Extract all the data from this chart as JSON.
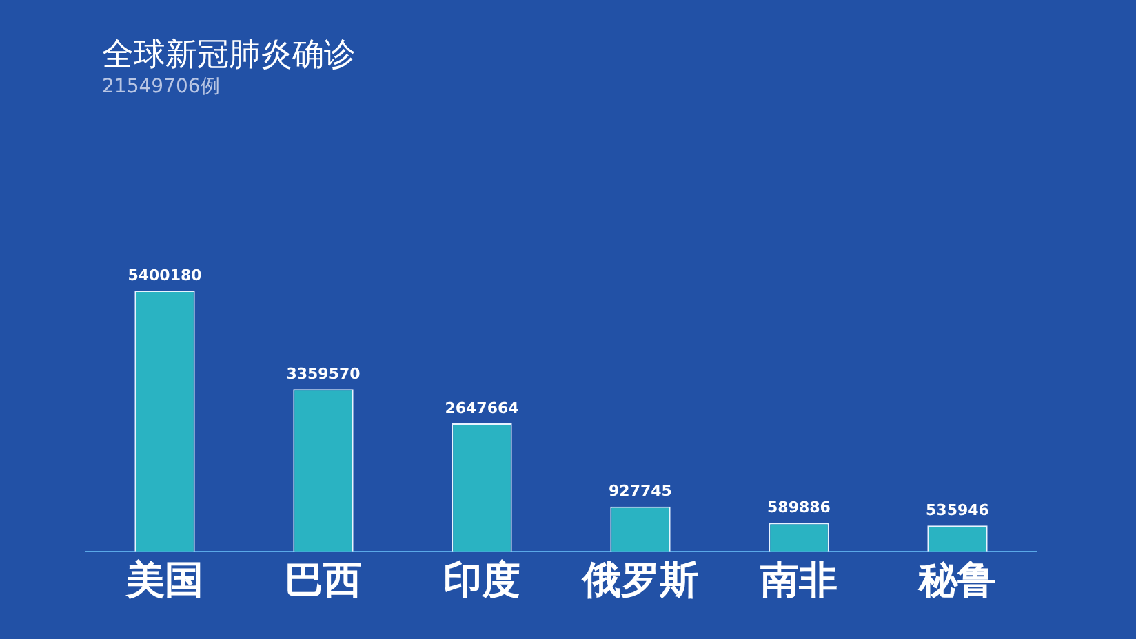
{
  "chart_data": {
    "type": "bar",
    "title": "全球新冠肺炎确诊",
    "subtitle": "21549706例",
    "categories": [
      "美国",
      "巴西",
      "印度",
      "俄罗斯",
      "南非",
      "秘鲁"
    ],
    "values": [
      5400180,
      3359570,
      2647664,
      927745,
      589886,
      535946
    ],
    "color": "#2ab3c2",
    "data_labels": true,
    "grid": false,
    "legend": false
  }
}
